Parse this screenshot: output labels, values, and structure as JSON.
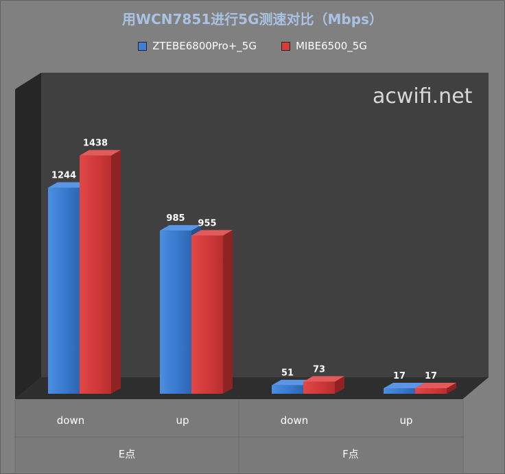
{
  "chart_data": {
    "type": "bar",
    "title": "用WCN7851进行5G测速对比（Mbps）",
    "categories": [
      "down",
      "up",
      "down",
      "up"
    ],
    "groups": [
      {
        "label": "E点",
        "categories": [
          "down",
          "up"
        ]
      },
      {
        "label": "F点",
        "categories": [
          "down",
          "up"
        ]
      }
    ],
    "series": [
      {
        "name": "ZTEBE6800Pro+_5G",
        "color": "#3d7fd6",
        "values": [
          1244,
          985,
          51,
          17
        ]
      },
      {
        "name": "MIBE6500_5G",
        "color": "#d93a3a",
        "values": [
          1438,
          955,
          73,
          17
        ]
      }
    ],
    "ylim": [
      0,
      1600
    ],
    "grid": false,
    "legend_position": "top",
    "data_labels": true,
    "watermark": "acwifi.net"
  }
}
